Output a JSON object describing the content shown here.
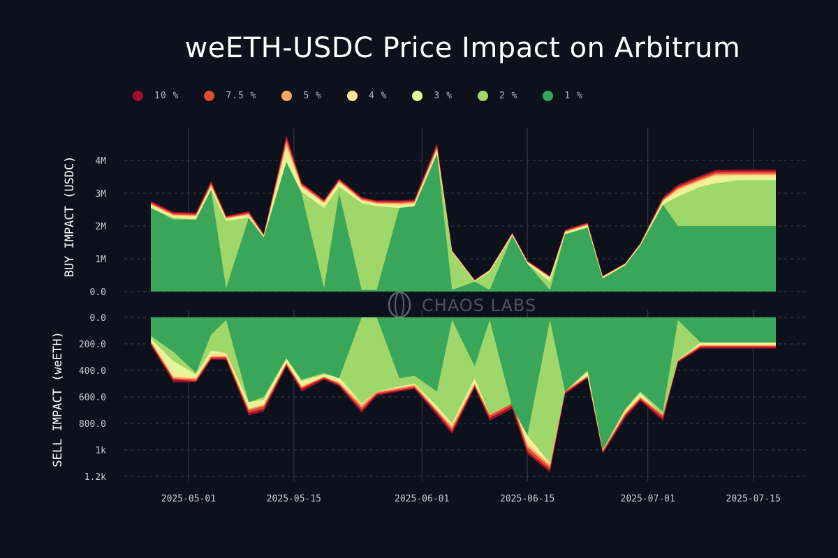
{
  "title": "weETH-USDC Price Impact on Arbitrum",
  "watermark": "CHAOS LABS",
  "chart_data": {
    "type": "area",
    "legend": [
      {
        "label": "10 %",
        "color": "#a50f2d"
      },
      {
        "label": "7.5 %",
        "color": "#e04b35"
      },
      {
        "label": "5 %",
        "color": "#f9a462"
      },
      {
        "label": "4 %",
        "color": "#fde794"
      },
      {
        "label": "3 %",
        "color": "#e7f59a"
      },
      {
        "label": "2 %",
        "color": "#a0d76a"
      },
      {
        "label": "1 %",
        "color": "#3aa65a"
      }
    ],
    "x_ticks": [
      "2025-05-01",
      "2025-05-15",
      "2025-06-01",
      "2025-06-15",
      "2025-07-01",
      "2025-07-15"
    ],
    "dates": [
      "2025-04-26",
      "2025-04-29",
      "2025-05-02",
      "2025-05-04",
      "2025-05-06",
      "2025-05-09",
      "2025-05-11",
      "2025-05-14",
      "2025-05-16",
      "2025-05-19",
      "2025-05-21",
      "2025-05-24",
      "2025-05-26",
      "2025-05-29",
      "2025-05-31",
      "2025-06-03",
      "2025-06-05",
      "2025-06-08",
      "2025-06-10",
      "2025-06-13",
      "2025-06-15",
      "2025-06-18",
      "2025-06-20",
      "2025-06-23",
      "2025-06-25",
      "2025-06-28",
      "2025-06-30",
      "2025-07-03",
      "2025-07-05",
      "2025-07-08",
      "2025-07-10",
      "2025-07-13",
      "2025-07-15",
      "2025-07-18"
    ],
    "buy": {
      "ylabel": "BUY IMPACT (USDC)",
      "y_ticks": [
        "0.0",
        "1M",
        "2M",
        "3M",
        "4M"
      ],
      "ylim": [
        0,
        5000000
      ],
      "series": [
        {
          "name": "1 %",
          "values": [
            2550000,
            2200000,
            2200000,
            3100000,
            100000,
            2250000,
            1650000,
            3950000,
            3000000,
            100000,
            3000000,
            50000,
            50000,
            2550000,
            2600000,
            4200000,
            50000,
            300000,
            50000,
            1700000,
            850000,
            50000,
            1750000,
            1950000,
            400000,
            800000,
            1400000,
            2650000,
            2000000,
            2000000,
            2000000,
            2000000,
            2000000,
            2000000
          ]
        },
        {
          "name": "2 %",
          "values": [
            2550000,
            2250000,
            2200000,
            3100000,
            2150000,
            2250000,
            1650000,
            3950000,
            3050000,
            2550000,
            3200000,
            2700000,
            2600000,
            2550000,
            2600000,
            4200000,
            1200000,
            300000,
            600000,
            1700000,
            850000,
            300000,
            1750000,
            1950000,
            400000,
            800000,
            1400000,
            2650000,
            2900000,
            3200000,
            3300000,
            3400000,
            3400000,
            3400000
          ]
        },
        {
          "name": "3 %",
          "values": [
            2600000,
            2280000,
            2260000,
            3150000,
            2200000,
            2300000,
            1680000,
            4300000,
            3150000,
            2650000,
            3300000,
            2750000,
            2650000,
            2620000,
            2650000,
            4270000,
            1220000,
            320000,
            620000,
            1730000,
            880000,
            400000,
            1780000,
            2000000,
            430000,
            820000,
            1420000,
            2720000,
            3000000,
            3300000,
            3450000,
            3480000,
            3480000,
            3480000
          ]
        },
        {
          "name": "4 %",
          "values": [
            2650000,
            2320000,
            2300000,
            3220000,
            2230000,
            2340000,
            1700000,
            4450000,
            3200000,
            2700000,
            3340000,
            2780000,
            2680000,
            2660000,
            2690000,
            4330000,
            1230000,
            330000,
            640000,
            1750000,
            900000,
            430000,
            1810000,
            2030000,
            450000,
            840000,
            1440000,
            2760000,
            3100000,
            3380000,
            3540000,
            3550000,
            3550000,
            3550000
          ]
        },
        {
          "name": "5 %",
          "values": [
            2680000,
            2350000,
            2330000,
            3260000,
            2250000,
            2370000,
            1720000,
            4560000,
            3240000,
            2730000,
            3370000,
            2810000,
            2710000,
            2700000,
            2730000,
            4380000,
            1240000,
            340000,
            650000,
            1760000,
            910000,
            440000,
            1830000,
            2050000,
            460000,
            850000,
            1450000,
            2790000,
            3150000,
            3420000,
            3590000,
            3600000,
            3600000,
            3600000
          ]
        },
        {
          "name": "7.5 %",
          "values": [
            2720000,
            2390000,
            2370000,
            3320000,
            2280000,
            2410000,
            1740000,
            4680000,
            3290000,
            2770000,
            3410000,
            2850000,
            2750000,
            2740000,
            2770000,
            4460000,
            1250000,
            350000,
            660000,
            1780000,
            930000,
            460000,
            1860000,
            2080000,
            470000,
            860000,
            1470000,
            2830000,
            3200000,
            3480000,
            3650000,
            3660000,
            3660000,
            3660000
          ]
        },
        {
          "name": "10 %",
          "values": [
            2760000,
            2430000,
            2410000,
            3380000,
            2310000,
            2450000,
            1770000,
            4770000,
            3330000,
            2800000,
            3450000,
            2880000,
            2780000,
            2780000,
            2810000,
            4530000,
            1260000,
            360000,
            670000,
            1800000,
            950000,
            480000,
            1890000,
            2110000,
            480000,
            870000,
            1480000,
            2880000,
            3260000,
            3540000,
            3710000,
            3720000,
            3720000,
            3720000
          ]
        }
      ]
    },
    "sell": {
      "ylabel": "SELL IMPACT (weETH)",
      "y_ticks": [
        "0.0",
        "200.0",
        "400.0",
        "600.0",
        "800.0",
        "1k",
        "1.2k"
      ],
      "ylim": [
        0,
        1200
      ],
      "series": [
        {
          "name": "1 %",
          "values": [
            140,
            260,
            420,
            130,
            20,
            640,
            600,
            310,
            470,
            420,
            460,
            0,
            0,
            460,
            440,
            560,
            20,
            370,
            20,
            680,
            890,
            20,
            560,
            400,
            1000,
            690,
            560,
            710,
            20,
            190,
            190,
            190,
            190,
            190
          ]
        },
        {
          "name": "2 %",
          "values": [
            160,
            330,
            430,
            250,
            270,
            640,
            620,
            310,
            480,
            430,
            450,
            650,
            560,
            520,
            500,
            670,
            800,
            460,
            730,
            650,
            890,
            1100,
            560,
            410,
            1000,
            700,
            570,
            740,
            320,
            190,
            190,
            190,
            190,
            190
          ]
        },
        {
          "name": "3 %",
          "values": [
            170,
            420,
            450,
            280,
            250,
            680,
            650,
            330,
            510,
            440,
            480,
            630,
            540,
            510,
            500,
            690,
            790,
            490,
            720,
            630,
            930,
            1090,
            530,
            430,
            990,
            710,
            590,
            720,
            310,
            200,
            200,
            200,
            200,
            200
          ]
        },
        {
          "name": "4 %",
          "values": [
            180,
            450,
            460,
            290,
            290,
            690,
            660,
            340,
            520,
            450,
            490,
            660,
            560,
            530,
            510,
            700,
            820,
            500,
            730,
            640,
            960,
            1110,
            550,
            440,
            1000,
            720,
            600,
            730,
            320,
            210,
            210,
            210,
            210,
            210
          ]
        },
        {
          "name": "5 %",
          "values": [
            190,
            460,
            470,
            300,
            300,
            700,
            670,
            350,
            530,
            450,
            500,
            680,
            570,
            540,
            520,
            710,
            840,
            510,
            740,
            650,
            980,
            1130,
            560,
            450,
            1010,
            730,
            610,
            740,
            330,
            215,
            215,
            215,
            215,
            215
          ]
        },
        {
          "name": "7.5 %",
          "values": [
            200,
            470,
            480,
            310,
            310,
            720,
            690,
            360,
            540,
            460,
            510,
            700,
            580,
            550,
            530,
            720,
            860,
            520,
            760,
            670,
            1010,
            1150,
            570,
            450,
            1020,
            740,
            620,
            760,
            330,
            225,
            225,
            225,
            225,
            225
          ]
        },
        {
          "name": "10 %",
          "values": [
            210,
            490,
            490,
            320,
            320,
            740,
            710,
            370,
            560,
            470,
            520,
            720,
            590,
            560,
            540,
            740,
            880,
            530,
            780,
            690,
            1030,
            1170,
            580,
            460,
            1030,
            760,
            630,
            780,
            340,
            235,
            235,
            235,
            235,
            235
          ]
        }
      ]
    }
  }
}
